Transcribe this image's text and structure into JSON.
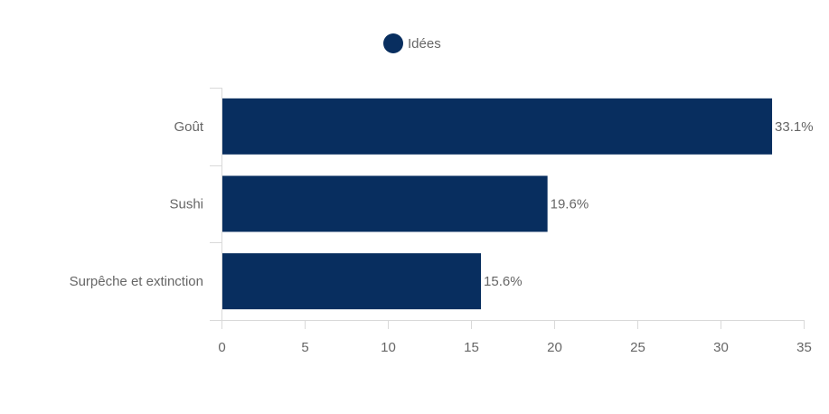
{
  "chart_data": {
    "type": "bar",
    "orientation": "horizontal",
    "categories": [
      "Goût",
      "Sushi",
      "Surpêche et extinction"
    ],
    "series": [
      {
        "name": "Idées",
        "values": [
          33.1,
          19.6,
          15.6
        ]
      }
    ],
    "data_labels": [
      "33.1%",
      "19.6%",
      "15.6%"
    ],
    "xlim": [
      0,
      35
    ],
    "xticks": [
      0,
      5,
      10,
      15,
      20,
      25,
      30,
      35
    ],
    "grid": false,
    "legend_position": "top-center",
    "colors": {
      "bar": "#082e5f",
      "axis": "#d9d9d9",
      "text": "#666666"
    }
  }
}
